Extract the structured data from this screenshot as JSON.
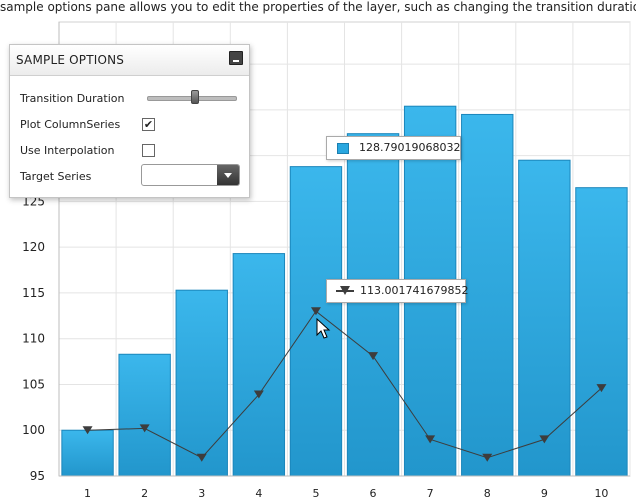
{
  "description_text": "sample options pane allows you to edit the properties of the layer, such as changing the transition duration.",
  "options_panel": {
    "title": "SAMPLE OPTIONS",
    "transition_duration_label": "Transition Duration",
    "transition_duration_value": 0.55,
    "plot_column_series_label": "Plot ColumnSeries",
    "plot_column_series_checked": true,
    "use_interpolation_label": "Use Interpolation",
    "use_interpolation_checked": false,
    "target_series_label": "Target Series",
    "target_series_value": ""
  },
  "tooltips": {
    "column_value": "128.79019068032",
    "line_value": "113.001741679852"
  },
  "colors": {
    "bar_fill_top": "#3bb7ec",
    "bar_fill_bottom": "#2296cc",
    "line": "#3d3d3d",
    "grid": "#e4e4e4"
  },
  "chart_data": {
    "type": "bar",
    "categories": [
      "1",
      "2",
      "3",
      "4",
      "5",
      "6",
      "7",
      "8",
      "9",
      "10"
    ],
    "series": [
      {
        "type": "column",
        "values": [
          100.0,
          108.3,
          115.3,
          119.3,
          128.8,
          132.4,
          135.4,
          134.5,
          129.5,
          126.5
        ]
      },
      {
        "type": "line",
        "values": [
          100.0,
          100.2,
          97.0,
          103.9,
          113.0,
          108.1,
          99.0,
          97.0,
          99.0,
          104.6
        ]
      }
    ],
    "y_ticks": [
      95,
      100,
      105,
      110,
      115,
      120,
      125
    ],
    "ylim": [
      95,
      144.6
    ],
    "grid": true,
    "legend": "none"
  }
}
